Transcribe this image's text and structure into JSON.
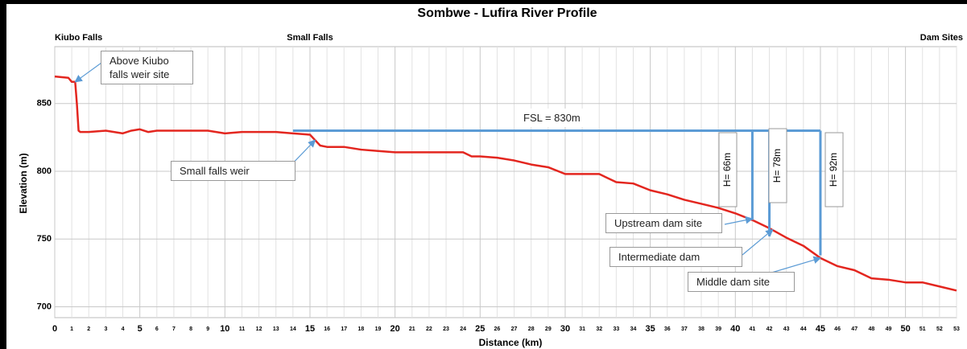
{
  "chart_data": {
    "type": "line",
    "title": "Sombwe - Lufira River Profile",
    "xlabel": "Distance (km)",
    "ylabel": "Elevation (m)",
    "top_labels": [
      {
        "text": "Kiubo Falls",
        "x": 0
      },
      {
        "text": "Small Falls",
        "x": 15
      },
      {
        "text": "Dam Sites",
        "x": 53
      }
    ],
    "x": [
      0,
      0.8,
      1.0,
      1.2,
      1.3,
      1.4,
      1.5,
      2,
      3,
      4,
      4.5,
      5,
      5.5,
      6,
      8,
      9,
      10,
      11,
      12,
      13,
      14,
      15,
      15.3,
      15.6,
      16,
      17,
      18,
      19,
      20,
      21,
      22,
      23,
      24,
      24.5,
      25,
      26,
      27,
      28,
      29,
      30,
      31,
      32,
      32.5,
      33,
      34,
      35,
      36,
      37,
      38,
      39,
      40,
      41,
      42,
      43,
      44,
      45,
      46,
      47,
      48,
      49,
      50,
      51,
      52,
      53
    ],
    "values": [
      870,
      869,
      866,
      866,
      850,
      830,
      829,
      829,
      830,
      828,
      830,
      831,
      829,
      830,
      830,
      830,
      828,
      829,
      829,
      829,
      828,
      827,
      823,
      819,
      818,
      818,
      816,
      815,
      814,
      814,
      814,
      814,
      814,
      811,
      811,
      810,
      808,
      805,
      803,
      798,
      798,
      798,
      795,
      792,
      791,
      786,
      783,
      779,
      776,
      773,
      769,
      764,
      758,
      751,
      745,
      736,
      730,
      727,
      721,
      720,
      718,
      718,
      715,
      712
    ],
    "color": "#e3261f",
    "fsl": 830,
    "fsl_from": 14,
    "fsl_label": "FSL = 830m",
    "fsl_color": "#5b9bd5",
    "dams": [
      {
        "x": 41,
        "height": 66,
        "label": "H= 66m"
      },
      {
        "x": 42,
        "height": 78,
        "label": "H= 78m"
      },
      {
        "x": 45,
        "height": 92,
        "label": "H= 92m"
      }
    ],
    "annotations": [
      {
        "text": "Above Kiubo falls weir site",
        "x": 1.2,
        "y": 866
      },
      {
        "text": "Small falls weir",
        "x": 15.3,
        "y": 823
      },
      {
        "text": "Upstream dam site",
        "x": 41,
        "y": 765
      },
      {
        "text": "Intermediate dam",
        "x": 42.2,
        "y": 757
      },
      {
        "text": "Middle dam site",
        "x": 45,
        "y": 736
      }
    ],
    "xlim": [
      0,
      53
    ],
    "xticks": [
      0,
      1,
      2,
      3,
      4,
      5,
      6,
      7,
      8,
      9,
      10,
      11,
      12,
      13,
      14,
      15,
      16,
      17,
      18,
      19,
      20,
      21,
      22,
      23,
      24,
      25,
      26,
      27,
      28,
      29,
      30,
      31,
      32,
      33,
      34,
      35,
      36,
      37,
      38,
      39,
      40,
      41,
      42,
      43,
      44,
      45,
      46,
      47,
      48,
      49,
      50,
      51,
      52,
      53
    ],
    "ylim": [
      692,
      892
    ],
    "yticks": [
      700,
      750,
      800,
      850
    ],
    "grid": true
  }
}
